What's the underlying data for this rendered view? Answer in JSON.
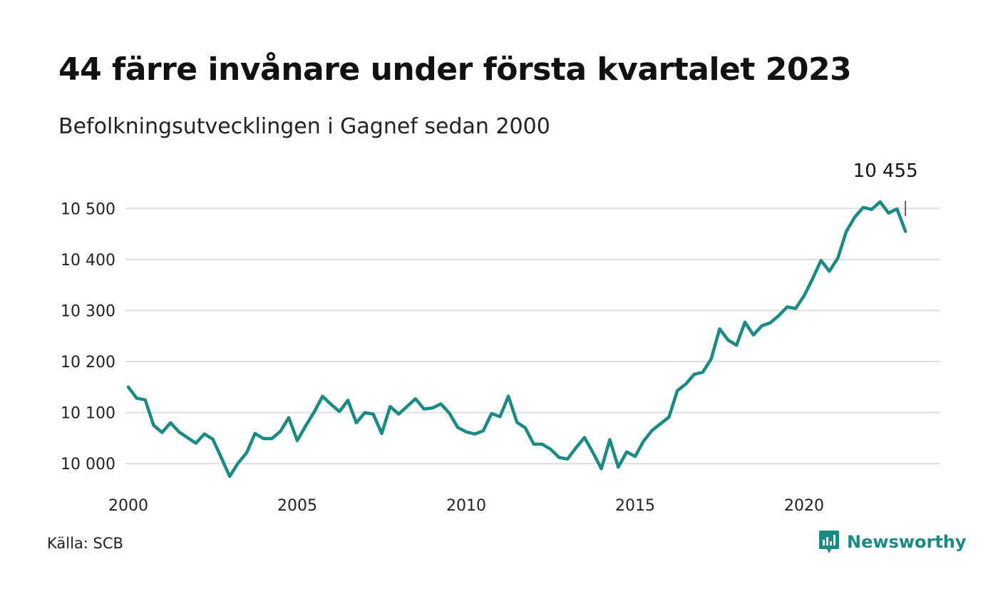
{
  "title": "44 färre invånare under första kvartalet 2023",
  "subtitle": "Befolkningsutvecklingen i Gagnef sedan 2000",
  "source": "Källa: SCB",
  "brand": {
    "name": "Newsworthy",
    "icon": "newsworthy-logo-icon",
    "color": "#1a8a85"
  },
  "chart_data": {
    "type": "line",
    "title": "44 färre invånare under första kvartalet 2023",
    "subtitle": "Befolkningsutvecklingen i Gagnef sedan 2000",
    "xlabel": "",
    "ylabel": "",
    "xlim": [
      2000,
      2023.25
    ],
    "ylim": [
      9975,
      10520
    ],
    "x_ticks": [
      2000,
      2005,
      2010,
      2015,
      2020
    ],
    "x_tick_labels": [
      "2000",
      "2005",
      "2010",
      "2015",
      "2020"
    ],
    "y_ticks": [
      10000,
      10100,
      10200,
      10300,
      10400,
      10500
    ],
    "y_tick_labels": [
      "10 000",
      "10 100",
      "10 200",
      "10 300",
      "10 400",
      "10 500"
    ],
    "grid": "horizontal",
    "line_color": "#1a8a85",
    "grid_color": "#dddde3",
    "end_label": "10 455",
    "series": [
      {
        "x_start": 2000,
        "step": 0.25,
        "values": [
          10150,
          10128,
          10125,
          10075,
          10061,
          10080,
          10062,
          10051,
          10040,
          10058,
          10048,
          10012,
          9975,
          10001,
          10021,
          10059,
          10049,
          10049,
          10063,
          10090,
          10045,
          10074,
          10101,
          10132,
          10116,
          10102,
          10124,
          10080,
          10100,
          10097,
          10059,
          10112,
          10097,
          10112,
          10127,
          10107,
          10109,
          10117,
          10099,
          10071,
          10062,
          10058,
          10064,
          10098,
          10092,
          10132,
          10081,
          10070,
          10038,
          10038,
          10028,
          10012,
          10009,
          10031,
          10051,
          10022,
          9990,
          10047,
          9993,
          10023,
          10014,
          10044,
          10065,
          10078,
          10091,
          10143,
          10156,
          10175,
          10179,
          10205,
          10264,
          10242,
          10232,
          10277,
          10252,
          10270,
          10276,
          10290,
          10307,
          10304,
          10329,
          10362,
          10398,
          10377,
          10403,
          10455,
          10483,
          10502,
          10498,
          10513,
          10491,
          10499,
          10455
        ]
      }
    ]
  }
}
